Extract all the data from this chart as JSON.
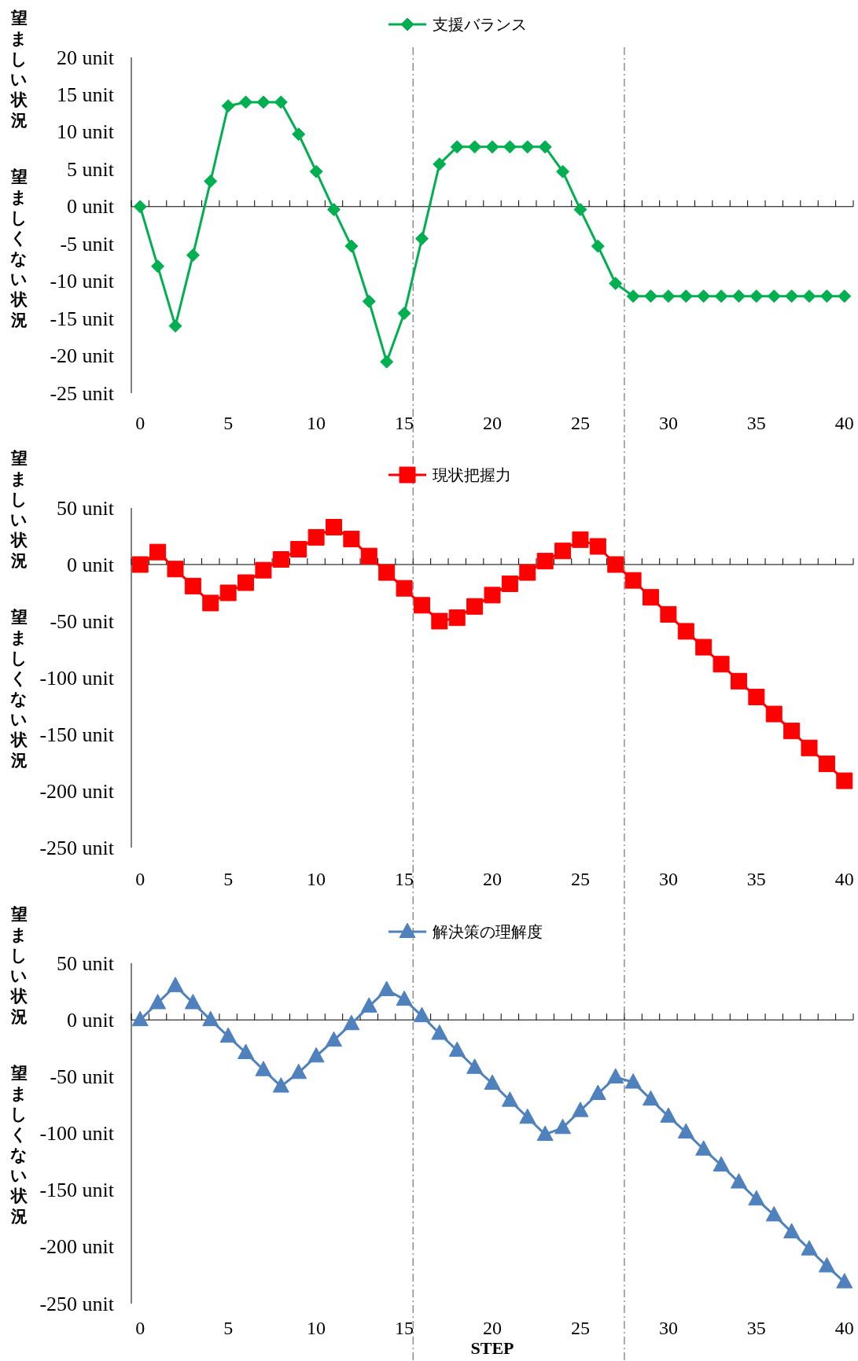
{
  "chart_data": [
    {
      "type": "line",
      "annotations": [
        "望ましい状況",
        "望ましくない状況"
      ],
      "legend": "top",
      "marker": "diamond",
      "x": [
        0,
        1,
        2,
        3,
        4,
        5,
        6,
        7,
        8,
        9,
        10,
        11,
        12,
        13,
        14,
        15,
        16,
        17,
        18,
        19,
        20,
        21,
        22,
        23,
        24,
        25,
        26,
        27,
        28,
        29,
        30,
        31,
        32,
        33,
        34,
        35,
        36,
        37,
        38,
        39,
        40
      ],
      "xlim": [
        -0.5,
        40.5
      ],
      "xticks": [
        0,
        5,
        10,
        15,
        20,
        25,
        30,
        35,
        40
      ],
      "ylim": [
        -25,
        20
      ],
      "yticks": [
        {
          "value": 20,
          "label": "20 unit"
        },
        {
          "value": 15,
          "label": "15 unit"
        },
        {
          "value": 10,
          "label": "10 unit"
        },
        {
          "value": 5,
          "label": "5 unit"
        },
        {
          "value": 0,
          "label": "0 unit"
        },
        {
          "value": -5,
          "label": "-5 unit"
        },
        {
          "value": -10,
          "label": "-10 unit"
        },
        {
          "value": -15,
          "label": "-15 unit"
        },
        {
          "value": -20,
          "label": "-20 unit"
        },
        {
          "value": -25,
          "label": "-25 unit"
        }
      ],
      "ref_lines": [
        {
          "axis": "x",
          "value": 15.5,
          "color": "#7f7f7f",
          "line_style": "dashdot"
        },
        {
          "axis": "x",
          "value": 27.5,
          "color": "#7f7f7f",
          "line_style": "dashdot"
        }
      ],
      "series": [
        {
          "name": "支援バランス",
          "color": "#00b050",
          "values": [
            0,
            -8,
            -16,
            -6.5,
            3.4,
            13.5,
            14,
            14,
            14,
            9.7,
            4.7,
            -0.4,
            -5.3,
            -12.7,
            -20.8,
            -14.3,
            -4.3,
            5.7,
            8,
            8,
            8,
            8,
            8,
            8,
            4.7,
            -0.4,
            -5.3,
            -10.3,
            -12,
            -12,
            -12,
            -12,
            -12,
            -12,
            -12,
            -12,
            -12,
            -12,
            -12,
            -12,
            -12
          ]
        }
      ]
    },
    {
      "type": "line",
      "annotations": [
        "望ましい状況",
        "望ましくない状況"
      ],
      "legend": "top",
      "marker": "square",
      "x": [
        0,
        1,
        2,
        3,
        4,
        5,
        6,
        7,
        8,
        9,
        10,
        11,
        12,
        13,
        14,
        15,
        16,
        17,
        18,
        19,
        20,
        21,
        22,
        23,
        24,
        25,
        26,
        27,
        28,
        29,
        30,
        31,
        32,
        33,
        34,
        35,
        36,
        37,
        38,
        39,
        40
      ],
      "xlim": [
        -0.5,
        40.5
      ],
      "xticks": [
        0,
        5,
        10,
        15,
        20,
        25,
        30,
        35,
        40
      ],
      "ylim": [
        -250,
        50
      ],
      "yticks": [
        {
          "value": 50,
          "label": "50 unit"
        },
        {
          "value": 0,
          "label": "0 unit"
        },
        {
          "value": -50,
          "label": "-50 unit"
        },
        {
          "value": -100,
          "label": "-100 unit"
        },
        {
          "value": -150,
          "label": "-150 unit"
        },
        {
          "value": -200,
          "label": "-200 unit"
        },
        {
          "value": -250,
          "label": "-250 unit"
        }
      ],
      "ref_lines": [
        {
          "axis": "x",
          "value": 15.5,
          "color": "#7f7f7f",
          "line_style": "dashdot"
        },
        {
          "axis": "x",
          "value": 27.5,
          "color": "#7f7f7f",
          "line_style": "dashdot"
        }
      ],
      "series": [
        {
          "name": "現状把握力",
          "color": "#ff0000",
          "values": [
            0,
            11,
            -4,
            -19,
            -34,
            -25,
            -16,
            -5,
            4.5,
            13.5,
            24,
            33,
            22.5,
            7.5,
            -7,
            -21,
            -36,
            -50,
            -47,
            -37,
            -27,
            -17,
            -7,
            3,
            12,
            22,
            16,
            0,
            -14,
            -29,
            -44,
            -59,
            -73,
            -88,
            -103,
            -117,
            -132,
            -147,
            -162,
            -176,
            -191
          ]
        }
      ]
    },
    {
      "type": "line",
      "annotations": [
        "望ましい状況",
        "望ましくない状況"
      ],
      "legend": "top",
      "marker": "triangle",
      "xlabel": "STEP",
      "x": [
        0,
        1,
        2,
        3,
        4,
        5,
        6,
        7,
        8,
        9,
        10,
        11,
        12,
        13,
        14,
        15,
        16,
        17,
        18,
        19,
        20,
        21,
        22,
        23,
        24,
        25,
        26,
        27,
        28,
        29,
        30,
        31,
        32,
        33,
        34,
        35,
        36,
        37,
        38,
        39,
        40
      ],
      "xlim": [
        -0.5,
        40.5
      ],
      "xticks": [
        0,
        5,
        10,
        15,
        20,
        25,
        30,
        35,
        40
      ],
      "ylim": [
        -250,
        50
      ],
      "yticks": [
        {
          "value": 50,
          "label": "50 unit"
        },
        {
          "value": 0,
          "label": "0 unit"
        },
        {
          "value": -50,
          "label": "-50 unit"
        },
        {
          "value": -100,
          "label": "-100 unit"
        },
        {
          "value": -150,
          "label": "-150 unit"
        },
        {
          "value": -200,
          "label": "-200 unit"
        },
        {
          "value": -250,
          "label": "-250 unit"
        }
      ],
      "ref_lines": [
        {
          "axis": "x",
          "value": 15.5,
          "color": "#7f7f7f",
          "line_style": "dashdot"
        },
        {
          "axis": "x",
          "value": 27.5,
          "color": "#7f7f7f",
          "line_style": "dashdot"
        }
      ],
      "series": [
        {
          "name": "解決策の理解度",
          "color": "#4f81bd",
          "values": [
            0,
            15,
            30,
            15,
            0,
            -14.5,
            -29,
            -44,
            -58.5,
            -46.5,
            -32,
            -18,
            -3.5,
            12,
            26.5,
            18,
            3.5,
            -12,
            -27,
            -42,
            -56,
            -71,
            -86,
            -101,
            -95,
            -80,
            -65,
            -50.5,
            -55,
            -70,
            -85,
            -99,
            -114,
            -128,
            -143,
            -158,
            -172,
            -187,
            -202,
            -217,
            -231
          ]
        }
      ]
    }
  ]
}
